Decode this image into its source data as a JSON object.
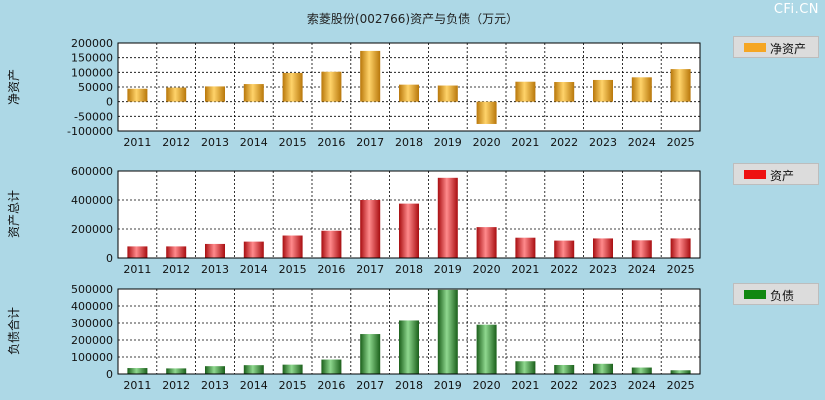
{
  "title": "索菱股份(002766)资产与负债（万元）",
  "watermark": "CFi.CN",
  "chart_data": [
    {
      "type": "bar",
      "title": "索菱股份(002766)资产与负债（万元）",
      "ylabel": "净资产",
      "legend": "净资产",
      "legend_position": "right",
      "color": "#f5a623",
      "grid": true,
      "categories": [
        "2011",
        "2012",
        "2013",
        "2014",
        "2015",
        "2016",
        "2017",
        "2018",
        "2019",
        "2020",
        "2021",
        "2022",
        "2023",
        "2024",
        "2025"
      ],
      "values": [
        44000,
        48000,
        52000,
        60000,
        98000,
        102000,
        173000,
        58000,
        55000,
        -76000,
        68000,
        67000,
        74000,
        83000,
        111000
      ],
      "ylim": [
        -100000,
        200000
      ],
      "yticks": [
        "200000",
        "150000",
        "100000",
        "50000",
        "0",
        "-50000",
        "-100000"
      ],
      "ytick_values": [
        200000,
        150000,
        100000,
        50000,
        0,
        -50000,
        -100000
      ]
    },
    {
      "type": "bar",
      "ylabel": "资产总计",
      "legend": "资产",
      "legend_position": "right",
      "color": "#e8282b",
      "grid": true,
      "categories": [
        "2011",
        "2012",
        "2013",
        "2014",
        "2015",
        "2016",
        "2017",
        "2018",
        "2019",
        "2020",
        "2021",
        "2022",
        "2023",
        "2024",
        "2025"
      ],
      "values": [
        80000,
        80000,
        97000,
        113000,
        155000,
        188000,
        400000,
        375000,
        553000,
        213000,
        140000,
        120000,
        135000,
        122000,
        135000
      ],
      "ylim": [
        0,
        600000
      ],
      "yticks": [
        "600000",
        "400000",
        "200000",
        "0"
      ],
      "ytick_values": [
        600000,
        400000,
        200000,
        0
      ]
    },
    {
      "type": "bar",
      "ylabel": "负债合计",
      "legend": "负债",
      "legend_position": "right",
      "color": "#2f8a2f",
      "grid": true,
      "categories": [
        "2011",
        "2012",
        "2013",
        "2014",
        "2015",
        "2016",
        "2017",
        "2018",
        "2019",
        "2020",
        "2021",
        "2022",
        "2023",
        "2024",
        "2025"
      ],
      "values": [
        35000,
        33000,
        46000,
        52000,
        55000,
        85000,
        235000,
        315000,
        495000,
        290000,
        75000,
        53000,
        60000,
        38000,
        22000
      ],
      "ylim": [
        0,
        500000
      ],
      "yticks": [
        "500000",
        "400000",
        "300000",
        "200000",
        "100000",
        "0"
      ],
      "ytick_values": [
        500000,
        400000,
        300000,
        200000,
        100000,
        0
      ]
    }
  ]
}
